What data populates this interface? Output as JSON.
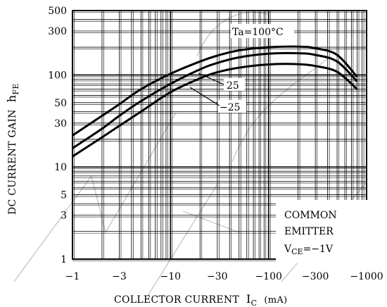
{
  "chart_data": {
    "type": "line",
    "x_scale": "log",
    "y_scale": "log",
    "xlim": [
      -1,
      -1000
    ],
    "ylim": [
      1,
      500
    ],
    "xlabel": {
      "main": "COLLECTOR CURRENT",
      "sym": "I",
      "sub": "C",
      "unit": "(mA)"
    },
    "ylabel": {
      "main": "DC CURRENT GAIN",
      "sym": "h",
      "sub": "FE"
    },
    "x_ticks": [
      {
        "value": -1,
        "label": "−1"
      },
      {
        "value": -3,
        "label": "−3"
      },
      {
        "value": -10,
        "label": "−10"
      },
      {
        "value": -30,
        "label": "−30"
      },
      {
        "value": -100,
        "label": "−100"
      },
      {
        "value": -300,
        "label": "−300"
      },
      {
        "value": -1000,
        "label": "−1000"
      }
    ],
    "y_ticks": [
      {
        "value": 1,
        "label": "1"
      },
      {
        "value": 3,
        "label": "3"
      },
      {
        "value": 5,
        "label": "5"
      },
      {
        "value": 10,
        "label": "10"
      },
      {
        "value": 30,
        "label": "30"
      },
      {
        "value": 50,
        "label": "50"
      },
      {
        "value": 100,
        "label": "100"
      },
      {
        "value": 300,
        "label": "300"
      },
      {
        "value": 500,
        "label": "500"
      }
    ],
    "grid": true,
    "series": [
      {
        "name": "Ta=100°C",
        "x": [
          -1,
          -2,
          -3,
          -5,
          -10,
          -20,
          -30,
          -50,
          -100,
          -200,
          -300,
          -500,
          -800
        ],
        "y": [
          22,
          36,
          48,
          70,
          103,
          140,
          162,
          185,
          200,
          203,
          195,
          165,
          95
        ]
      },
      {
        "name": "25",
        "x": [
          -1,
          -2,
          -3,
          -5,
          -10,
          -20,
          -30,
          -50,
          -100,
          -200,
          -300,
          -500,
          -800
        ],
        "y": [
          16,
          26,
          36,
          52,
          80,
          115,
          135,
          155,
          170,
          172,
          165,
          140,
          85
        ]
      },
      {
        "name": "−25",
        "x": [
          -1,
          -2,
          -3,
          -5,
          -10,
          -20,
          -30,
          -50,
          -100,
          -200,
          -300,
          -500,
          -800
        ],
        "y": [
          13,
          21,
          28,
          40,
          65,
          92,
          107,
          120,
          130,
          131,
          125,
          108,
          70
        ]
      }
    ],
    "series_labels": [
      {
        "text": "Ta",
        "value": "=100°C"
      },
      {
        "text": "25"
      },
      {
        "text": "−25"
      }
    ],
    "condition_box": {
      "line1": "COMMON",
      "line2": "EMITTER",
      "vce_sym": "V",
      "vce_sub": "CE",
      "vce_val": "=−1V"
    }
  }
}
